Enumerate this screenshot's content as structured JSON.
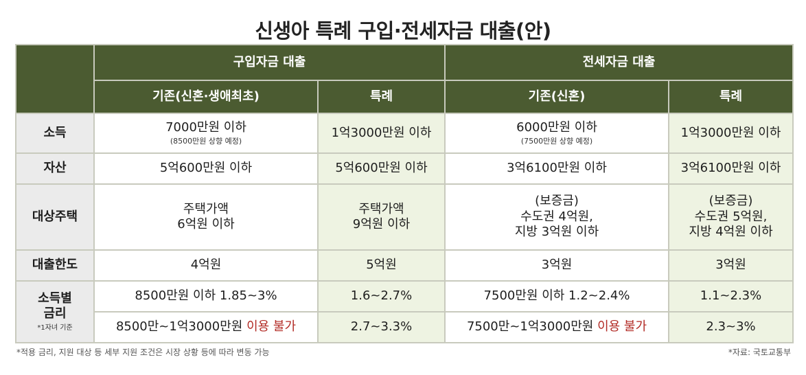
{
  "title": "신생아 특례 구입·전세자금 대출(안)",
  "header": {
    "group_purchase": "구입자금 대출",
    "group_jeonse": "전세자금 대출",
    "purchase_existing": "기존(신혼·생애최초)",
    "purchase_special": "특례",
    "jeonse_existing": "기존(신혼)",
    "jeonse_special": "특례"
  },
  "rows": {
    "income": {
      "label": "소득",
      "purchase_existing": "7000만원 이하",
      "purchase_existing_note": "(8500만원 상향 예정)",
      "purchase_special": "1억3000만원 이하",
      "jeonse_existing": "6000만원 이하",
      "jeonse_existing_note": "(7500만원 상향 예정)",
      "jeonse_special": "1억3000만원 이하"
    },
    "assets": {
      "label": "자산",
      "purchase_existing": "5억600만원 이하",
      "purchase_special": "5억600만원 이하",
      "jeonse_existing": "3억6100만원 이하",
      "jeonse_special": "3억6100만원 이하"
    },
    "housing": {
      "label": "대상주택",
      "purchase_existing_1": "주택가액",
      "purchase_existing_2": "6억원 이하",
      "purchase_special_1": "주택가액",
      "purchase_special_2": "9억원 이하",
      "jeonse_existing_1": "(보증금)",
      "jeonse_existing_2": "수도권 4억원,",
      "jeonse_existing_3": "지방 3억원 이하",
      "jeonse_special_1": "(보증금)",
      "jeonse_special_2": "수도권 5억원,",
      "jeonse_special_3": "지방 4억원 이하"
    },
    "limit": {
      "label": "대출한도",
      "purchase_existing": "4억원",
      "purchase_special": "5억원",
      "jeonse_existing": "3억원",
      "jeonse_special": "3억원"
    },
    "rate": {
      "label_1": "소득별",
      "label_2": "금리",
      "label_note": "*1자녀 기준",
      "r1_purchase_existing": "8500만원 이하 1.85~3%",
      "r1_purchase_special": "1.6~2.7%",
      "r1_jeonse_existing": "7500만원 이하 1.2~2.4%",
      "r1_jeonse_special": "1.1~2.3%",
      "r2_purchase_existing": "8500만~1억3000만원",
      "r2_purchase_existing_red": "이용 불가",
      "r2_purchase_special": "2.7~3.3%",
      "r2_jeonse_existing": "7500만~1억3000만원",
      "r2_jeonse_existing_red": "이용 불가",
      "r2_jeonse_special": "2.3~3%"
    }
  },
  "footnote": "*적용 금리, 지원 대상 등 세부 지원 조건은 시장 상황 등에 따라 변동 가능",
  "source": "*자료: 국토교통부",
  "colors": {
    "header_bg": "#4b5b31",
    "special_bg": "#eef3e2",
    "label_bg": "#ebebeb",
    "warning": "#b22a24"
  }
}
